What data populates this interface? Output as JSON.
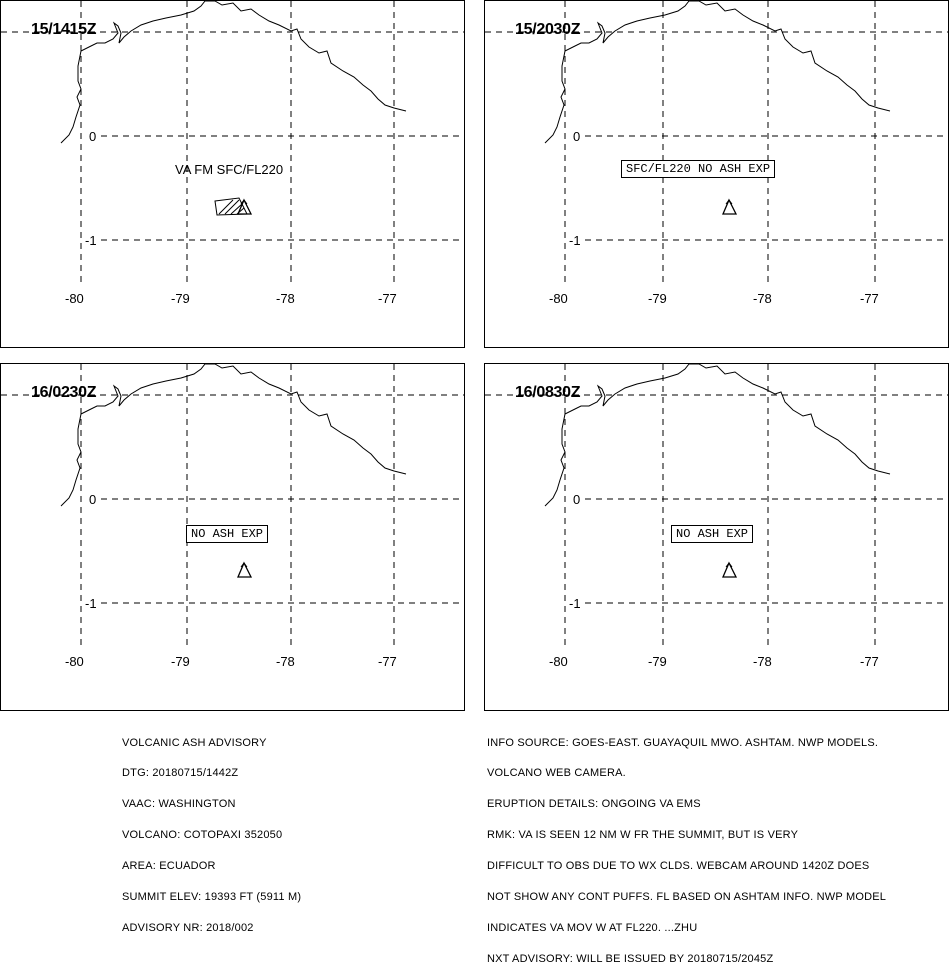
{
  "panels": [
    {
      "time": "15/1415Z",
      "lat_labels": [
        "0",
        "-1"
      ],
      "lon_labels": [
        "-80",
        "-79",
        "-78",
        "-77"
      ],
      "annotation": "VA FM SFC/FL220",
      "annotation_style": "plain",
      "ash_area": true
    },
    {
      "time": "15/2030Z",
      "lat_labels": [
        "0",
        "-1"
      ],
      "lon_labels": [
        "-80",
        "-79",
        "-78",
        "-77"
      ],
      "annotation": "SFC/FL220 NO ASH EXP",
      "annotation_style": "boxed",
      "ash_area": false
    },
    {
      "time": "16/0230Z",
      "lat_labels": [
        "0",
        "-1"
      ],
      "lon_labels": [
        "-80",
        "-79",
        "-78",
        "-77"
      ],
      "annotation": "NO ASH EXP",
      "annotation_style": "boxed",
      "ash_area": false
    },
    {
      "time": "16/0830Z",
      "lat_labels": [
        "0",
        "-1"
      ],
      "lon_labels": [
        "-80",
        "-79",
        "-78",
        "-77"
      ],
      "annotation": "NO ASH EXP",
      "annotation_style": "boxed",
      "ash_area": false
    }
  ],
  "advisory_left": [
    "VOLCANIC ASH ADVISORY",
    "DTG: 20180715/1442Z",
    "VAAC: WASHINGTON",
    "VOLCANO: COTOPAXI 352050",
    "AREA: ECUADOR",
    "SUMMIT ELEV: 19393 FT (5911 M)",
    "ADVISORY NR: 2018/002"
  ],
  "advisory_right": [
    "INFO SOURCE: GOES-EAST. GUAYAQUIL MWO. ASHTAM. NWP MODELS.",
    "VOLCANO WEB CAMERA.",
    "ERUPTION DETAILS: ONGOING VA EMS",
    "RMK: VA IS SEEN 12 NM W FR THE SUMMIT, BUT IS VERY",
    "DIFFICULT TO OBS DUE TO WX CLDS. WEBCAM AROUND 1420Z DOES",
    "NOT SHOW ANY CONT PUFFS. FL BASED ON ASHTAM INFO. NWP MODEL",
    "INDICATES VA MOV W AT FL220. ...ZHU",
    "NXT ADVISORY: WILL BE ISSUED BY 20180715/2045Z"
  ],
  "icons": {
    "volcano": "volcano-triangle-icon"
  }
}
